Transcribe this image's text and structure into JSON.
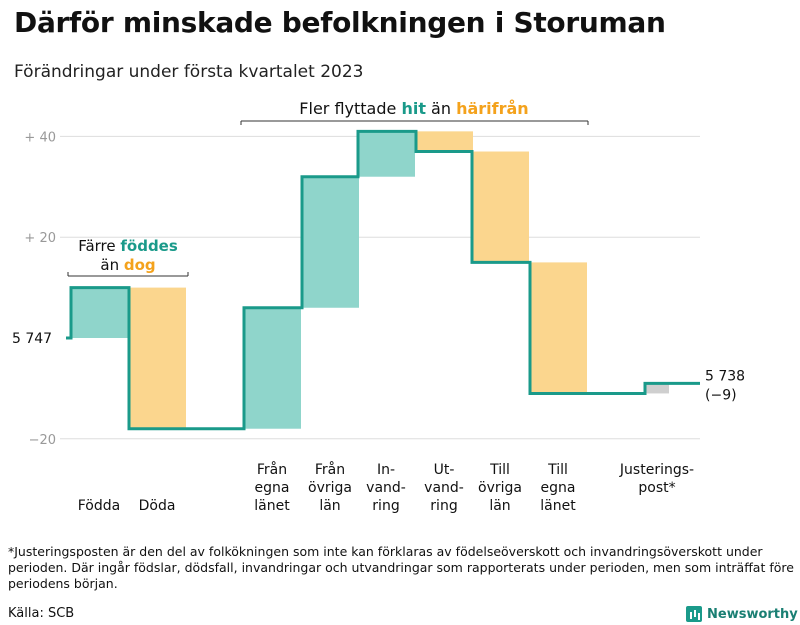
{
  "title": "Därför minskade befolkningen i Storuman",
  "subtitle": "Förändringar under första kvartalet 2023",
  "footnote": "*Justeringsposten är den del av folkökningen som inte kan förklaras av födelseöverskott och invandringsöverskott under perioden. Där ingår födslar, dödsfall, invandringar och utvandringar som rapporterats under perioden, men som inträffat före periodens början.",
  "source": "Källa: SCB",
  "logo": "Newsworthy",
  "colors": {
    "increase": "#8fd5cb",
    "decrease": "#fbd68e",
    "adjust": "#cfcfcf",
    "line": "#1a9a8a",
    "grid": "#dddddd",
    "teal_text": "#1a9a8a",
    "orange_text": "#f4a21c"
  },
  "chart_data": {
    "type": "waterfall",
    "title": "Därför minskade befolkningen i Storuman",
    "subtitle": "Förändringar under första kvartalet 2023",
    "ylim": [
      -20,
      40
    ],
    "ylabel": "",
    "y_ticks": [
      {
        "value": 40,
        "label": "+ 40"
      },
      {
        "value": 20,
        "label": "+ 20"
      },
      {
        "value": -20,
        "label": "−20"
      }
    ],
    "start": {
      "value": 0,
      "label": "5 747"
    },
    "end": {
      "value": -9,
      "label_line1": "5 738",
      "label_line2": "(−9)"
    },
    "steps": [
      {
        "category": [
          "Födda"
        ],
        "change": 10,
        "kind": "increase"
      },
      {
        "category": [
          "Döda"
        ],
        "change": -28,
        "kind": "decrease"
      },
      {
        "category": [
          "Från",
          "egna",
          "länet"
        ],
        "change": 24,
        "kind": "increase"
      },
      {
        "category": [
          "Från",
          "övriga",
          "län"
        ],
        "change": 26,
        "kind": "increase"
      },
      {
        "category": [
          "In-",
          "vand-",
          "ring"
        ],
        "change": 9,
        "kind": "increase"
      },
      {
        "category": [
          "Ut-",
          "vand-",
          "ring"
        ],
        "change": -4,
        "kind": "decrease"
      },
      {
        "category": [
          "Till",
          "övriga",
          "län"
        ],
        "change": -22,
        "kind": "decrease"
      },
      {
        "category": [
          "Till",
          "egna",
          "länet"
        ],
        "change": -26,
        "kind": "decrease"
      },
      {
        "category": [
          "Justerings-",
          "post*"
        ],
        "change": 2,
        "kind": "adjust"
      }
    ],
    "annotations": [
      {
        "line1": [
          {
            "text": "Färre ",
            "color": "plain"
          },
          {
            "text": "föddes",
            "color": "teal"
          }
        ],
        "line2": [
          {
            "text": "än ",
            "color": "plain"
          },
          {
            "text": "dog",
            "color": "orange"
          }
        ]
      },
      {
        "line1": [
          {
            "text": "Fler flyttade ",
            "color": "plain"
          },
          {
            "text": "hit",
            "color": "teal"
          },
          {
            "text": " än ",
            "color": "plain"
          },
          {
            "text": "härifrån",
            "color": "orange"
          }
        ]
      }
    ]
  }
}
